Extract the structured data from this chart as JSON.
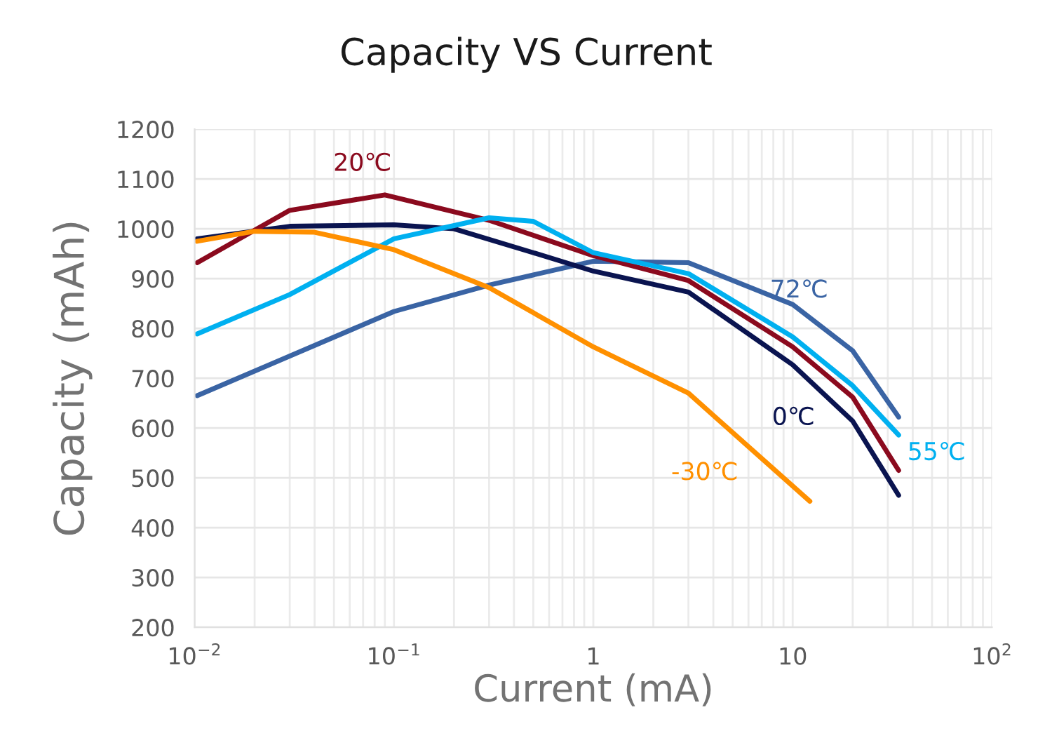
{
  "chart_data": {
    "type": "line",
    "title": "Capacity VS Current",
    "xlabel": "Current (mA)",
    "ylabel": "Capacity (mAh)",
    "log": "x",
    "grid": true,
    "marker": "none",
    "line_style": "solid",
    "legend": false,
    "xlim": [
      0.01,
      100
    ],
    "ylim": [
      200,
      1200
    ],
    "xticks": [
      {
        "value": 0.01,
        "label": "10$^{−2}$"
      },
      {
        "value": 0.1,
        "label": "10$^{−1}$"
      },
      1,
      10,
      {
        "value": 100,
        "label": "10$^{2}$"
      }
    ],
    "yticks": [
      200,
      300,
      400,
      500,
      600,
      700,
      800,
      900,
      1000,
      1100,
      1200
    ],
    "series": [
      {
        "name": "72℃",
        "color": "#3a64a4",
        "x": [
          0.0103,
          0.1,
          0.3,
          1,
          3,
          10,
          20,
          34
        ],
        "values": [
          665,
          834,
          887,
          935,
          932,
          848,
          755,
          622
        ]
      },
      {
        "name": "0℃",
        "color": "#0a1450",
        "x": [
          0.0103,
          0.03,
          0.1,
          0.2,
          0.5,
          1,
          3,
          10,
          20,
          34
        ],
        "values": [
          980,
          1005,
          1008,
          1000,
          952,
          915,
          873,
          727,
          614,
          465
        ]
      },
      {
        "name": "20℃",
        "color": "#8b0a1e",
        "x": [
          0.0103,
          0.03,
          0.09,
          0.3,
          1,
          3,
          10,
          20,
          34
        ],
        "values": [
          932,
          1037,
          1068,
          1017,
          946,
          896,
          763,
          662,
          515
        ]
      },
      {
        "name": "55℃",
        "color": "#00b0f0",
        "x": [
          0.0103,
          0.03,
          0.1,
          0.3,
          0.5,
          1,
          3,
          10,
          20,
          34
        ],
        "values": [
          789,
          868,
          980,
          1022,
          1015,
          952,
          910,
          783,
          685,
          586
        ]
      },
      {
        "name": "-30℃",
        "color": "#ff9000",
        "x": [
          0.0103,
          0.02,
          0.04,
          0.1,
          0.3,
          1,
          3,
          12.2
        ],
        "values": [
          975,
          995,
          993,
          958,
          882,
          763,
          670,
          453
        ]
      }
    ]
  }
}
